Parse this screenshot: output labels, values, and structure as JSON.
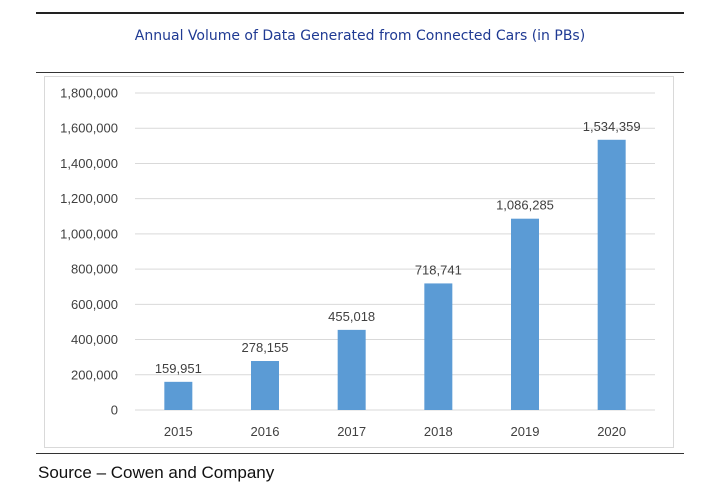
{
  "chart_data": {
    "type": "bar",
    "title": "Annual Volume of Data Generated from Connected Cars (in PBs)",
    "categories": [
      "2015",
      "2016",
      "2017",
      "2018",
      "2019",
      "2020"
    ],
    "values": [
      159951,
      278155,
      455018,
      718741,
      1086285,
      1534359
    ],
    "data_labels": [
      "159,951",
      "278,155",
      "455,018",
      "718,741",
      "1,086,285",
      "1,534,359"
    ],
    "ylim": [
      0,
      1800000
    ],
    "yticks": [
      0,
      200000,
      400000,
      600000,
      800000,
      1000000,
      1200000,
      1400000,
      1600000,
      1800000
    ],
    "ytick_labels": [
      "0",
      "200,000",
      "400,000",
      "600,000",
      "800,000",
      "1,000,000",
      "1,200,000",
      "1,400,000",
      "1,600,000",
      "1,800,000"
    ],
    "xlabel": "",
    "ylabel": "",
    "grid": true,
    "legend": "none",
    "bar_color": "#5b9bd5"
  },
  "source_note": "Source – Cowen and Company"
}
